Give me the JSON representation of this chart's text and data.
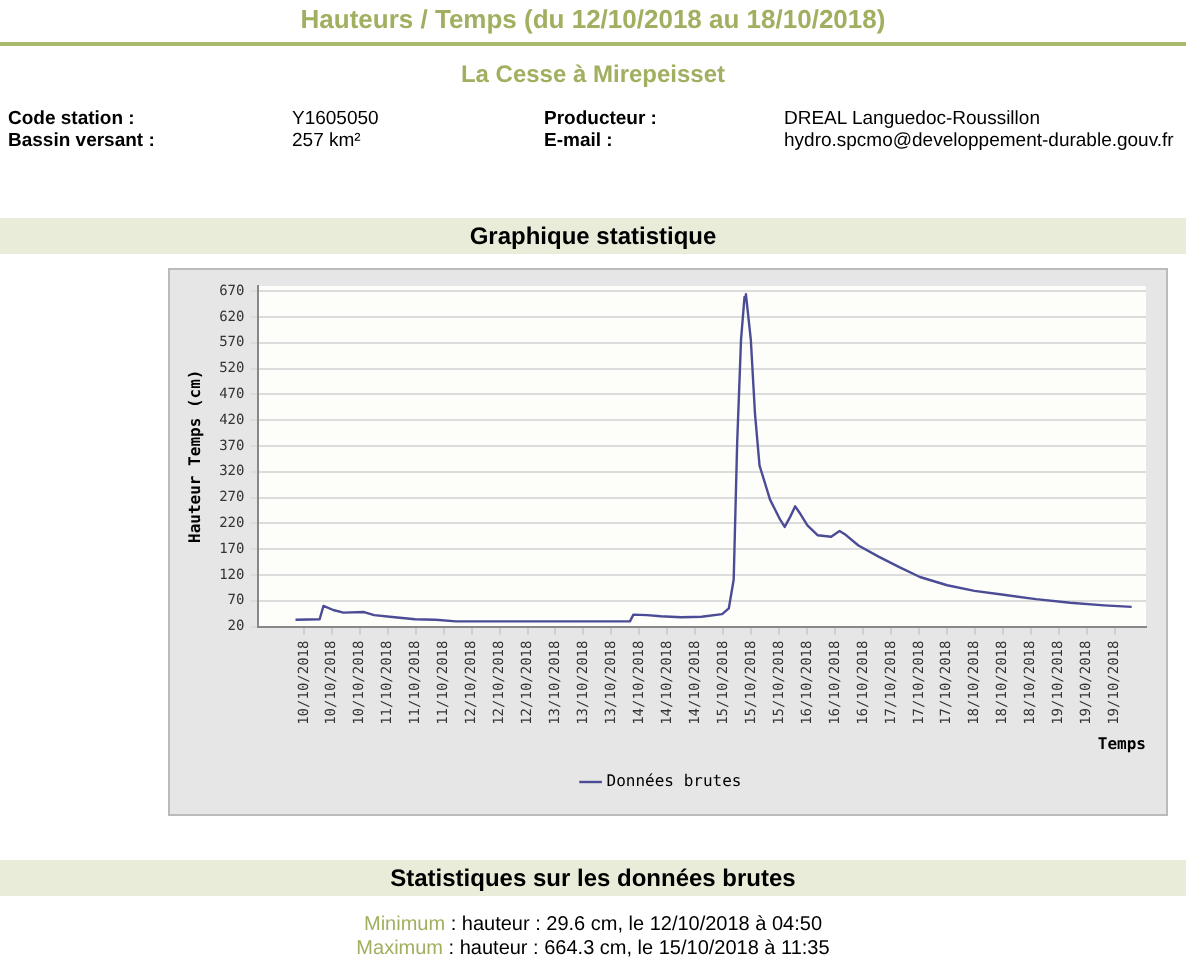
{
  "chart_data": {
    "type": "line",
    "title": "Hauteurs / Temps (du 12/10/2018 au 18/10/2018)",
    "subtitle": "La Cesse à Mirepeisset",
    "xlabel": "Temps",
    "ylabel": "Hauteur Temps (cm)",
    "annotations": [
      "Code station :",
      "Y1605050",
      "Bassin versant :",
      "257 km²",
      "Producteur :",
      "DREAL Languedoc-Roussillon",
      "E-mail :",
      "hydro.spcmo@developpement-durable.gouv.fr",
      "Graphique statistique",
      "Statistiques sur les données brutes",
      "Minimum",
      ": hauteur : 29.6 cm, le 12/10/2018 à 04:50",
      "Maximum",
      ": hauteur : 664.3 cm, le 15/10/2018 à 11:35"
    ],
    "x": [
      "2018-10-09T21:36",
      "2018-10-10T04:30",
      "2018-10-10T05:36",
      "2018-10-10T08:24",
      "2018-10-10T11:18",
      "2018-10-10T17:12",
      "2018-10-10T20:06",
      "2018-10-11T02:00",
      "2018-10-11T07:48",
      "2018-10-11T13:42",
      "2018-10-11T19:30",
      "2018-10-12T01:24",
      "2018-10-12T20:54",
      "2018-10-13T21:18",
      "2018-10-13T22:18",
      "2018-10-14T02:12",
      "2018-10-14T06:06",
      "2018-10-14T12:00",
      "2018-10-14T17:48",
      "2018-10-14T23:42",
      "2018-10-15T01:36",
      "2018-10-15T03:00",
      "2018-10-15T04:00",
      "2018-10-15T05:06",
      "2018-10-15T06:06",
      "2018-10-15T06:30",
      "2018-10-15T07:54",
      "2018-10-15T09:06",
      "2018-10-15T10:24",
      "2018-10-15T13:24",
      "2018-10-15T16:18",
      "2018-10-15T17:36",
      "2018-10-15T19:12",
      "2018-10-15T20:36",
      "2018-10-15T22:06",
      "2018-10-16T00:06",
      "2018-10-16T03:00",
      "2018-10-16T06:54",
      "2018-10-16T09:18",
      "2018-10-16T10:48",
      "2018-10-16T14:42",
      "2018-10-16T20:36",
      "2018-10-17T02:24",
      "2018-10-17T08:18",
      "2018-10-17T16:06",
      "2018-10-17T23:54",
      "2018-10-18T07:42",
      "2018-10-18T17:30",
      "2018-10-19T03:18",
      "2018-10-19T13:00",
      "2018-10-19T20:54"
    ],
    "series": [
      {
        "name": "Données brutes",
        "color": "#4b4b96",
        "values": [
          33,
          34,
          60,
          52,
          47,
          48,
          42,
          38,
          34,
          33,
          30,
          30,
          30,
          30,
          43,
          42,
          40,
          38,
          39,
          44,
          55,
          111,
          377,
          576,
          659,
          664,
          576,
          432,
          332,
          266,
          227,
          213,
          233,
          253,
          238,
          216,
          197,
          194,
          205,
          199,
          177,
          155,
          135,
          116,
          100,
          89,
          82,
          73,
          66,
          61,
          58
        ]
      }
    ],
    "xlim": [
      "2018-10-09T11:00",
      "2018-10-20T01:00"
    ],
    "xticks": [
      {
        "value": "2018-10-10T00:00",
        "label": "10/10/2018"
      },
      {
        "value": "2018-10-10T08:00",
        "label": "10/10/2018"
      },
      {
        "value": "2018-10-10T16:00",
        "label": "10/10/2018"
      },
      {
        "value": "2018-10-11T00:00",
        "label": "11/10/2018"
      },
      {
        "value": "2018-10-11T08:00",
        "label": "11/10/2018"
      },
      {
        "value": "2018-10-11T16:00",
        "label": "11/10/2018"
      },
      {
        "value": "2018-10-12T00:00",
        "label": "12/10/2018"
      },
      {
        "value": "2018-10-12T08:00",
        "label": "12/10/2018"
      },
      {
        "value": "2018-10-12T16:00",
        "label": "12/10/2018"
      },
      {
        "value": "2018-10-13T00:00",
        "label": "13/10/2018"
      },
      {
        "value": "2018-10-13T08:00",
        "label": "13/10/2018"
      },
      {
        "value": "2018-10-13T16:00",
        "label": "13/10/2018"
      },
      {
        "value": "2018-10-14T00:00",
        "label": "14/10/2018"
      },
      {
        "value": "2018-10-14T08:00",
        "label": "14/10/2018"
      },
      {
        "value": "2018-10-14T16:00",
        "label": "14/10/2018"
      },
      {
        "value": "2018-10-15T00:00",
        "label": "15/10/2018"
      },
      {
        "value": "2018-10-15T08:00",
        "label": "15/10/2018"
      },
      {
        "value": "2018-10-15T16:00",
        "label": "15/10/2018"
      },
      {
        "value": "2018-10-16T00:00",
        "label": "16/10/2018"
      },
      {
        "value": "2018-10-16T08:00",
        "label": "16/10/2018"
      },
      {
        "value": "2018-10-16T16:00",
        "label": "16/10/2018"
      },
      {
        "value": "2018-10-17T00:00",
        "label": "17/10/2018"
      },
      {
        "value": "2018-10-17T08:00",
        "label": "17/10/2018"
      },
      {
        "value": "2018-10-17T16:00",
        "label": "17/10/2018"
      },
      {
        "value": "2018-10-18T00:00",
        "label": "18/10/2018"
      },
      {
        "value": "2018-10-18T08:00",
        "label": "18/10/2018"
      },
      {
        "value": "2018-10-18T16:00",
        "label": "18/10/2018"
      },
      {
        "value": "2018-10-19T00:00",
        "label": "19/10/2018"
      },
      {
        "value": "2018-10-19T08:00",
        "label": "19/10/2018"
      },
      {
        "value": "2018-10-19T16:00",
        "label": "19/10/2018"
      }
    ],
    "ylim": [
      20,
      680
    ],
    "yticks": [
      20,
      70,
      120,
      170,
      220,
      270,
      320,
      370,
      420,
      470,
      520,
      570,
      620,
      670
    ],
    "grid": "y",
    "legend": "bottom",
    "marker": "none",
    "line_style": "solid"
  }
}
